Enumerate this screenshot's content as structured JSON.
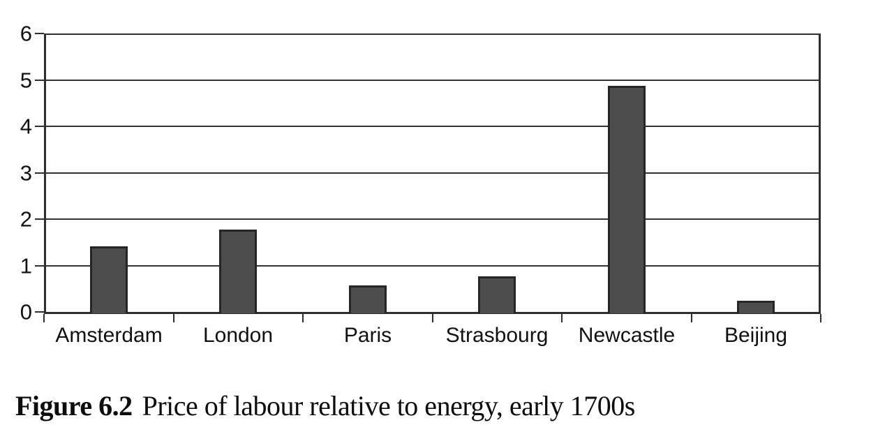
{
  "figure": {
    "caption": {
      "label": "Figure 6.2",
      "text": "Price of labour relative to energy, early 1700s"
    }
  },
  "chart_data": {
    "type": "bar",
    "categories": [
      "Amsterdam",
      "London",
      "Paris",
      "Strasbourg",
      "Newcastle",
      "Beijing"
    ],
    "values": [
      1.45,
      1.8,
      0.6,
      0.8,
      4.9,
      0.27
    ],
    "title": "Figure 6.2 Price of labour relative to energy, early 1700s",
    "xlabel": "",
    "ylabel": "",
    "ylim": [
      0,
      6
    ],
    "yticks": [
      0,
      1,
      2,
      3,
      4,
      5,
      6
    ],
    "grid": "horizontal",
    "legend": "none",
    "colors": {
      "bar_fill": "#4d4d4d",
      "bar_border": "#262626",
      "axis": "#2e2e2e",
      "gridline": "#333333",
      "text": "#111111"
    }
  }
}
